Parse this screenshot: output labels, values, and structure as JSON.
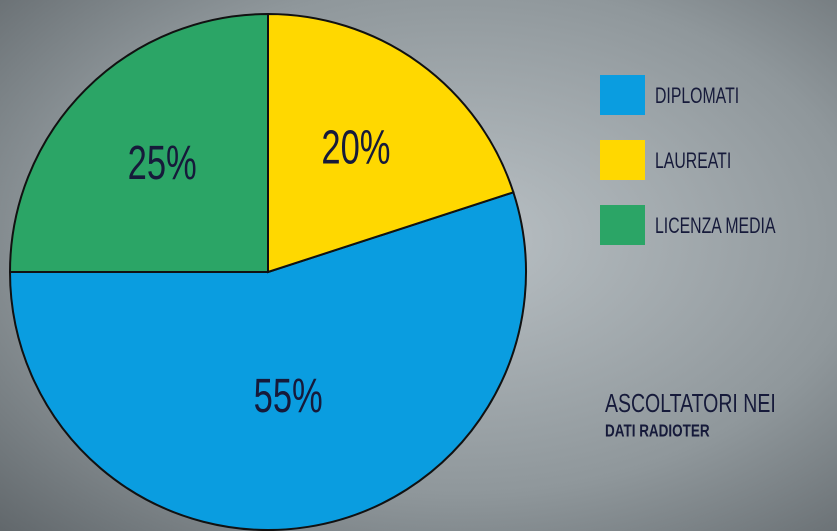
{
  "chart_data": {
    "type": "pie",
    "categories": [
      "DIPLOMATI",
      "LAUREATI",
      "LICENZA MEDIA"
    ],
    "values": [
      55,
      20,
      25
    ],
    "value_labels": [
      "55%",
      "20%",
      "25%"
    ],
    "colors": [
      "#0a9de0",
      "#ffd800",
      "#2ba566"
    ],
    "title": "ASCOLTATORI NEI",
    "subtitle": "DATI RADIOTER"
  }
}
